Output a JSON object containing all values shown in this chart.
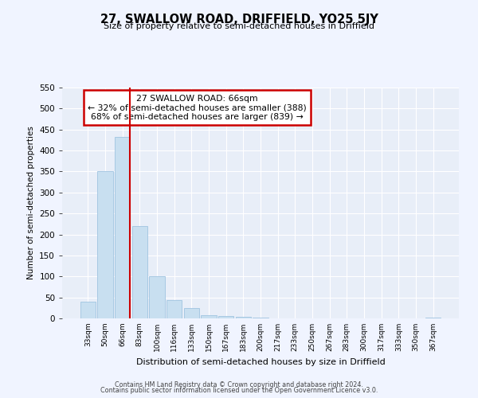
{
  "title": "27, SWALLOW ROAD, DRIFFIELD, YO25 5JY",
  "subtitle": "Size of property relative to semi-detached houses in Driffield",
  "xlabel": "Distribution of semi-detached houses by size in Driffield",
  "ylabel": "Number of semi-detached properties",
  "bar_labels": [
    "33sqm",
    "50sqm",
    "66sqm",
    "83sqm",
    "100sqm",
    "116sqm",
    "133sqm",
    "150sqm",
    "167sqm",
    "183sqm",
    "200sqm",
    "217sqm",
    "233sqm",
    "250sqm",
    "267sqm",
    "283sqm",
    "300sqm",
    "317sqm",
    "333sqm",
    "350sqm",
    "367sqm"
  ],
  "bar_values": [
    40,
    350,
    433,
    220,
    101,
    44,
    25,
    8,
    5,
    3,
    1,
    0,
    0,
    0,
    0,
    0,
    0,
    0,
    0,
    0,
    2
  ],
  "bar_color": "#c8dff0",
  "bar_edge_color": "#a0c4e0",
  "marker_index": 2,
  "marker_color": "#cc0000",
  "annotation_title": "27 SWALLOW ROAD: 66sqm",
  "annotation_line1": "← 32% of semi-detached houses are smaller (388)",
  "annotation_line2": "68% of semi-detached houses are larger (839) →",
  "annotation_box_color": "#ffffff",
  "annotation_box_edge": "#cc0000",
  "ylim": [
    0,
    550
  ],
  "yticks": [
    0,
    50,
    100,
    150,
    200,
    250,
    300,
    350,
    400,
    450,
    500,
    550
  ],
  "footer1": "Contains HM Land Registry data © Crown copyright and database right 2024.",
  "footer2": "Contains public sector information licensed under the Open Government Licence v3.0.",
  "bg_color": "#f0f4ff",
  "plot_bg_color": "#e8eef8"
}
